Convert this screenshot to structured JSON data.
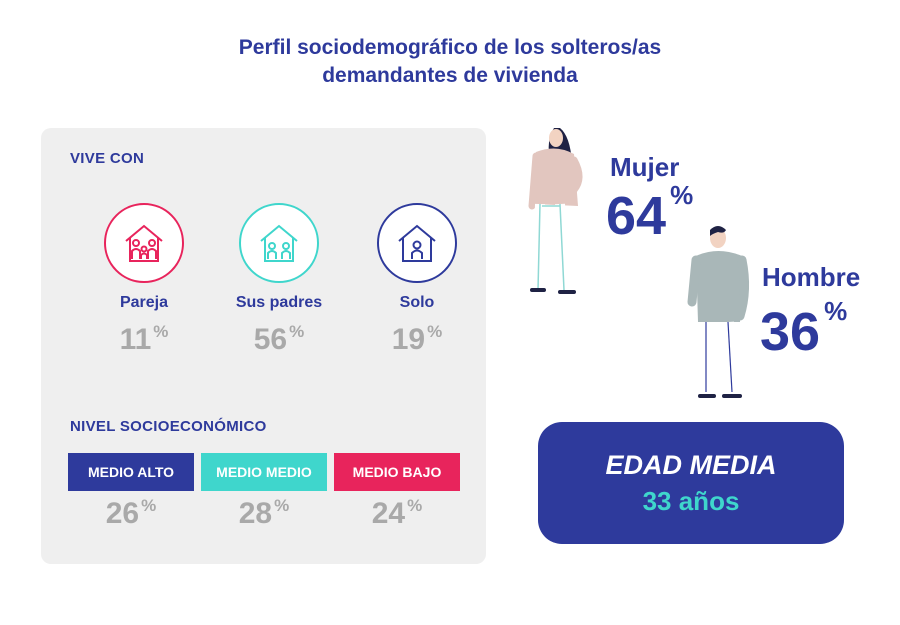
{
  "title_line1": "Perfil sociodemográfico de los solteros/as",
  "title_line2": "demandantes de vivienda",
  "vive_con": {
    "label": "VIVE CON",
    "items": [
      {
        "label": "Pareja",
        "value": "11",
        "color": "#e8245c",
        "icon": "family-house-icon"
      },
      {
        "label": "Sus padres",
        "value": "56",
        "color": "#3fd6cc",
        "icon": "parents-house-icon"
      },
      {
        "label": "Solo",
        "value": "19",
        "color": "#2e3a9c",
        "icon": "single-house-icon"
      }
    ]
  },
  "nivel": {
    "label": "NIVEL SOCIOECONÓMICO",
    "items": [
      {
        "label": "MEDIO ALTO",
        "value": "26",
        "color": "#2e3a9c"
      },
      {
        "label": "MEDIO MEDIO",
        "value": "28",
        "color": "#3fd6cc"
      },
      {
        "label": "MEDIO BAJO",
        "value": "24",
        "color": "#e8245c"
      }
    ]
  },
  "gender": {
    "female": {
      "label": "Mujer",
      "value": "64"
    },
    "male": {
      "label": "Hombre",
      "value": "36"
    }
  },
  "age": {
    "title": "EDAD MEDIA",
    "value": "33 años"
  },
  "percent_sign": "%",
  "chart_data": [
    {
      "type": "bar",
      "title": "VIVE CON",
      "categories": [
        "Pareja",
        "Sus padres",
        "Solo"
      ],
      "values": [
        11,
        56,
        19
      ],
      "unit": "%"
    },
    {
      "type": "bar",
      "title": "NIVEL SOCIOECONÓMICO",
      "categories": [
        "MEDIO ALTO",
        "MEDIO MEDIO",
        "MEDIO BAJO"
      ],
      "values": [
        26,
        28,
        24
      ],
      "unit": "%"
    },
    {
      "type": "pie",
      "categories": [
        "Mujer",
        "Hombre"
      ],
      "values": [
        64,
        36
      ],
      "unit": "%"
    }
  ]
}
